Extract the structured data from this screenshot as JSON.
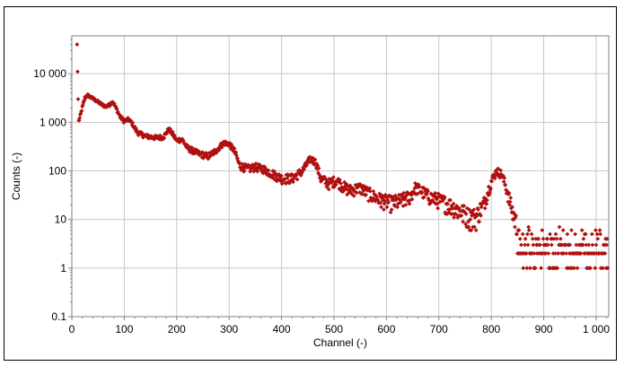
{
  "chart_data": {
    "type": "scatter",
    "title": "",
    "xlabel": "Channel (-)",
    "ylabel": "Counts (-)",
    "x_scale": "linear",
    "y_scale": "log",
    "xlim": [
      0,
      1024
    ],
    "ylim": [
      0.1,
      60000
    ],
    "grid": true,
    "legend": "none",
    "x_ticks": [
      0,
      100,
      200,
      300,
      400,
      500,
      600,
      700,
      800,
      900,
      1000
    ],
    "x_tick_labels": [
      "0",
      "100",
      "200",
      "300",
      "400",
      "500",
      "600",
      "700",
      "800",
      "900",
      "1 000"
    ],
    "y_ticks": [
      0.1,
      1,
      10,
      100,
      1000,
      10000
    ],
    "y_tick_labels": [
      "0.1",
      "1",
      "10",
      "100",
      "1 000",
      "10 000"
    ],
    "marker_color": "#b01010",
    "marker": "diamond",
    "series": [
      {
        "profile": [
          [
            10,
            900
          ],
          [
            15,
            1200
          ],
          [
            20,
            2000
          ],
          [
            25,
            3200
          ],
          [
            30,
            3600
          ],
          [
            40,
            3100
          ],
          [
            55,
            2400
          ],
          [
            65,
            2100
          ],
          [
            72,
            2300
          ],
          [
            78,
            2700
          ],
          [
            85,
            1900
          ],
          [
            92,
            1300
          ],
          [
            100,
            1050
          ],
          [
            108,
            1150
          ],
          [
            115,
            950
          ],
          [
            125,
            620
          ],
          [
            140,
            520
          ],
          [
            160,
            480
          ],
          [
            175,
            500
          ],
          [
            185,
            720
          ],
          [
            192,
            580
          ],
          [
            200,
            420
          ],
          [
            210,
            450
          ],
          [
            220,
            300
          ],
          [
            240,
            230
          ],
          [
            260,
            200
          ],
          [
            275,
            260
          ],
          [
            290,
            380
          ],
          [
            300,
            360
          ],
          [
            310,
            260
          ],
          [
            320,
            130
          ],
          [
            335,
            110
          ],
          [
            350,
            120
          ],
          [
            365,
            110
          ],
          [
            380,
            90
          ],
          [
            400,
            70
          ],
          [
            420,
            70
          ],
          [
            440,
            100
          ],
          [
            455,
            180
          ],
          [
            465,
            150
          ],
          [
            475,
            70
          ],
          [
            490,
            55
          ],
          [
            505,
            65
          ],
          [
            515,
            50
          ],
          [
            530,
            40
          ],
          [
            550,
            45
          ],
          [
            570,
            32
          ],
          [
            590,
            25
          ],
          [
            610,
            22
          ],
          [
            630,
            25
          ],
          [
            645,
            30
          ],
          [
            655,
            45
          ],
          [
            665,
            40
          ],
          [
            680,
            30
          ],
          [
            700,
            25
          ],
          [
            720,
            20
          ],
          [
            740,
            15
          ],
          [
            755,
            12
          ],
          [
            770,
            11
          ],
          [
            785,
            20
          ],
          [
            800,
            60
          ],
          [
            810,
            100
          ],
          [
            820,
            85
          ],
          [
            830,
            40
          ],
          [
            840,
            15
          ],
          [
            848,
            8
          ]
        ],
        "first_points": [
          [
            10,
            40000
          ],
          [
            11,
            11000
          ],
          [
            12,
            3000
          ]
        ],
        "tail_start": 850,
        "tail_end": 1022,
        "tail_levels": [
          1,
          2,
          3,
          4,
          5,
          6,
          7,
          8
        ]
      }
    ]
  }
}
